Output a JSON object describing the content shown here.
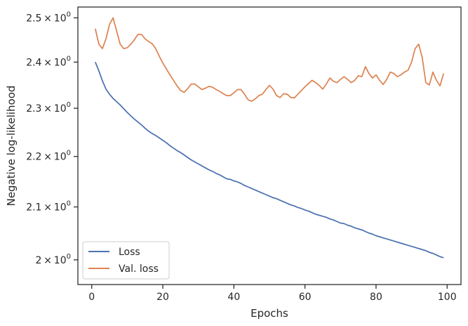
{
  "chart_data": {
    "type": "line",
    "title": "",
    "xlabel": "Epochs",
    "ylabel": "Negative log-likelihood",
    "yscale": "log",
    "xlim": [
      -3.9,
      103.9
    ],
    "ylim": [
      1.955,
      2.525
    ],
    "x_ticks": [
      {
        "value": 0,
        "label": "0"
      },
      {
        "value": 20,
        "label": "20"
      },
      {
        "value": 40,
        "label": "40"
      },
      {
        "value": 60,
        "label": "60"
      },
      {
        "value": 80,
        "label": "80"
      },
      {
        "value": 100,
        "label": "100"
      }
    ],
    "y_ticks": [
      {
        "value": 2.0,
        "mantissa": "2",
        "base": "10",
        "exp": "0"
      },
      {
        "value": 2.1,
        "mantissa": "2.1",
        "base": "10",
        "exp": "0"
      },
      {
        "value": 2.2,
        "mantissa": "2.2",
        "base": "10",
        "exp": "0"
      },
      {
        "value": 2.3,
        "mantissa": "2.3",
        "base": "10",
        "exp": "0"
      },
      {
        "value": 2.4,
        "mantissa": "2.4",
        "base": "10",
        "exp": "0"
      },
      {
        "value": 2.5,
        "mantissa": "2.5",
        "base": "10",
        "exp": "0"
      }
    ],
    "grid": false,
    "legend_position": "lower-left",
    "series": [
      {
        "name": "Loss",
        "color": "#4c72b0",
        "x": [
          1,
          2,
          3,
          4,
          5,
          6,
          7,
          8,
          9,
          10,
          11,
          12,
          13,
          14,
          15,
          16,
          17,
          18,
          19,
          20,
          21,
          22,
          23,
          24,
          25,
          26,
          27,
          28,
          29,
          30,
          31,
          32,
          33,
          34,
          35,
          36,
          37,
          38,
          39,
          40,
          41,
          42,
          43,
          44,
          45,
          46,
          47,
          48,
          49,
          50,
          51,
          52,
          53,
          54,
          55,
          56,
          57,
          58,
          59,
          60,
          61,
          62,
          63,
          64,
          65,
          66,
          67,
          68,
          69,
          70,
          71,
          72,
          73,
          74,
          75,
          76,
          77,
          78,
          79,
          80,
          81,
          82,
          83,
          84,
          85,
          86,
          87,
          88,
          89,
          90,
          91,
          92,
          93,
          94,
          95,
          96,
          97,
          98,
          99
        ],
        "y": [
          2.4,
          2.381,
          2.359,
          2.341,
          2.33,
          2.321,
          2.314,
          2.307,
          2.299,
          2.291,
          2.284,
          2.277,
          2.271,
          2.265,
          2.258,
          2.252,
          2.247,
          2.243,
          2.238,
          2.233,
          2.228,
          2.222,
          2.217,
          2.212,
          2.208,
          2.203,
          2.198,
          2.193,
          2.189,
          2.185,
          2.181,
          2.177,
          2.173,
          2.17,
          2.166,
          2.163,
          2.159,
          2.155,
          2.154,
          2.151,
          2.149,
          2.146,
          2.142,
          2.139,
          2.136,
          2.133,
          2.13,
          2.127,
          2.124,
          2.121,
          2.118,
          2.116,
          2.113,
          2.11,
          2.107,
          2.104,
          2.102,
          2.099,
          2.097,
          2.094,
          2.092,
          2.089,
          2.086,
          2.084,
          2.082,
          2.08,
          2.077,
          2.075,
          2.072,
          2.069,
          2.068,
          2.065,
          2.063,
          2.06,
          2.058,
          2.056,
          2.053,
          2.05,
          2.048,
          2.045,
          2.043,
          2.041,
          2.039,
          2.037,
          2.035,
          2.033,
          2.031,
          2.029,
          2.027,
          2.025,
          2.023,
          2.021,
          2.019,
          2.017,
          2.014,
          2.012,
          2.009,
          2.006,
          2.004
        ]
      },
      {
        "name": "Val. loss",
        "color": "#dd8452",
        "x": [
          1,
          2,
          3,
          4,
          5,
          6,
          7,
          8,
          9,
          10,
          11,
          12,
          13,
          14,
          15,
          16,
          17,
          18,
          19,
          20,
          21,
          22,
          23,
          24,
          25,
          26,
          27,
          28,
          29,
          30,
          31,
          32,
          33,
          34,
          35,
          36,
          37,
          38,
          39,
          40,
          41,
          42,
          43,
          44,
          45,
          46,
          47,
          48,
          49,
          50,
          51,
          52,
          53,
          54,
          55,
          56,
          57,
          58,
          59,
          60,
          61,
          62,
          63,
          64,
          65,
          66,
          67,
          68,
          69,
          70,
          71,
          72,
          73,
          74,
          75,
          76,
          77,
          78,
          79,
          80,
          81,
          82,
          83,
          84,
          85,
          86,
          87,
          88,
          89,
          90,
          91,
          92,
          93,
          94,
          95,
          96,
          97,
          98,
          99
        ],
        "y": [
          2.475,
          2.44,
          2.43,
          2.452,
          2.485,
          2.5,
          2.47,
          2.44,
          2.43,
          2.432,
          2.44,
          2.45,
          2.462,
          2.462,
          2.452,
          2.446,
          2.441,
          2.43,
          2.413,
          2.398,
          2.385,
          2.372,
          2.36,
          2.348,
          2.338,
          2.334,
          2.342,
          2.352,
          2.352,
          2.346,
          2.34,
          2.343,
          2.347,
          2.345,
          2.34,
          2.336,
          2.331,
          2.327,
          2.327,
          2.333,
          2.34,
          2.34,
          2.33,
          2.318,
          2.315,
          2.32,
          2.327,
          2.33,
          2.34,
          2.349,
          2.341,
          2.327,
          2.323,
          2.331,
          2.33,
          2.323,
          2.322,
          2.33,
          2.338,
          2.346,
          2.353,
          2.36,
          2.355,
          2.349,
          2.341,
          2.352,
          2.365,
          2.358,
          2.355,
          2.362,
          2.368,
          2.362,
          2.355,
          2.36,
          2.37,
          2.368,
          2.39,
          2.375,
          2.365,
          2.372,
          2.36,
          2.351,
          2.362,
          2.378,
          2.375,
          2.368,
          2.372,
          2.378,
          2.382,
          2.4,
          2.43,
          2.44,
          2.41,
          2.355,
          2.35,
          2.378,
          2.36,
          2.348,
          2.375
        ]
      }
    ]
  }
}
